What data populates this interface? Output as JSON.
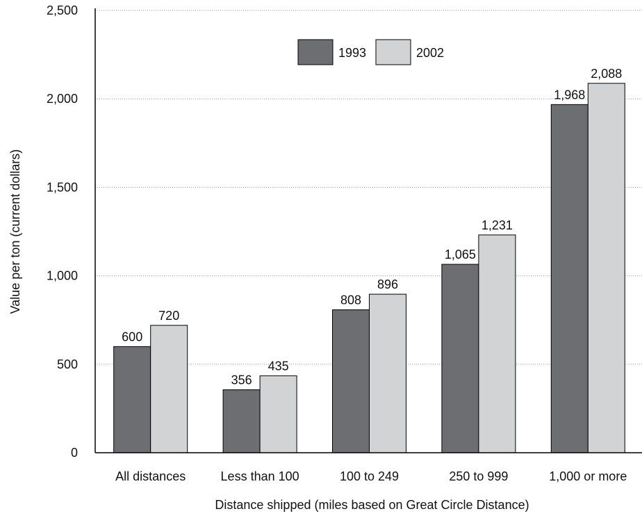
{
  "chart_data": {
    "type": "bar",
    "title": "",
    "xlabel": "Distance shipped (miles based on Great Circle Distance)",
    "ylabel": "Value per ton (current dollars)",
    "categories": [
      "All distances",
      "Less than 100",
      "100 to 249",
      "250 to 999",
      "1,000 or more"
    ],
    "series": [
      {
        "name": "1993",
        "values": [
          600,
          356,
          808,
          1065,
          1968
        ],
        "labels": [
          "600",
          "356",
          "808",
          "1,065",
          "1,968"
        ],
        "color": "#6d6e71"
      },
      {
        "name": "2002",
        "values": [
          720,
          435,
          896,
          1231,
          2088
        ],
        "labels": [
          "720",
          "435",
          "896",
          "1,231",
          "2,088"
        ],
        "color": "#d1d3d4"
      }
    ],
    "ylim": [
      0,
      2500
    ],
    "yticks": [
      0,
      500,
      1000,
      1500,
      2000,
      2500
    ],
    "ytick_labels": [
      "0",
      "500",
      "1,000",
      "1,500",
      "2,000",
      "2,500"
    ],
    "grid": true,
    "legend_position": "top-center"
  }
}
